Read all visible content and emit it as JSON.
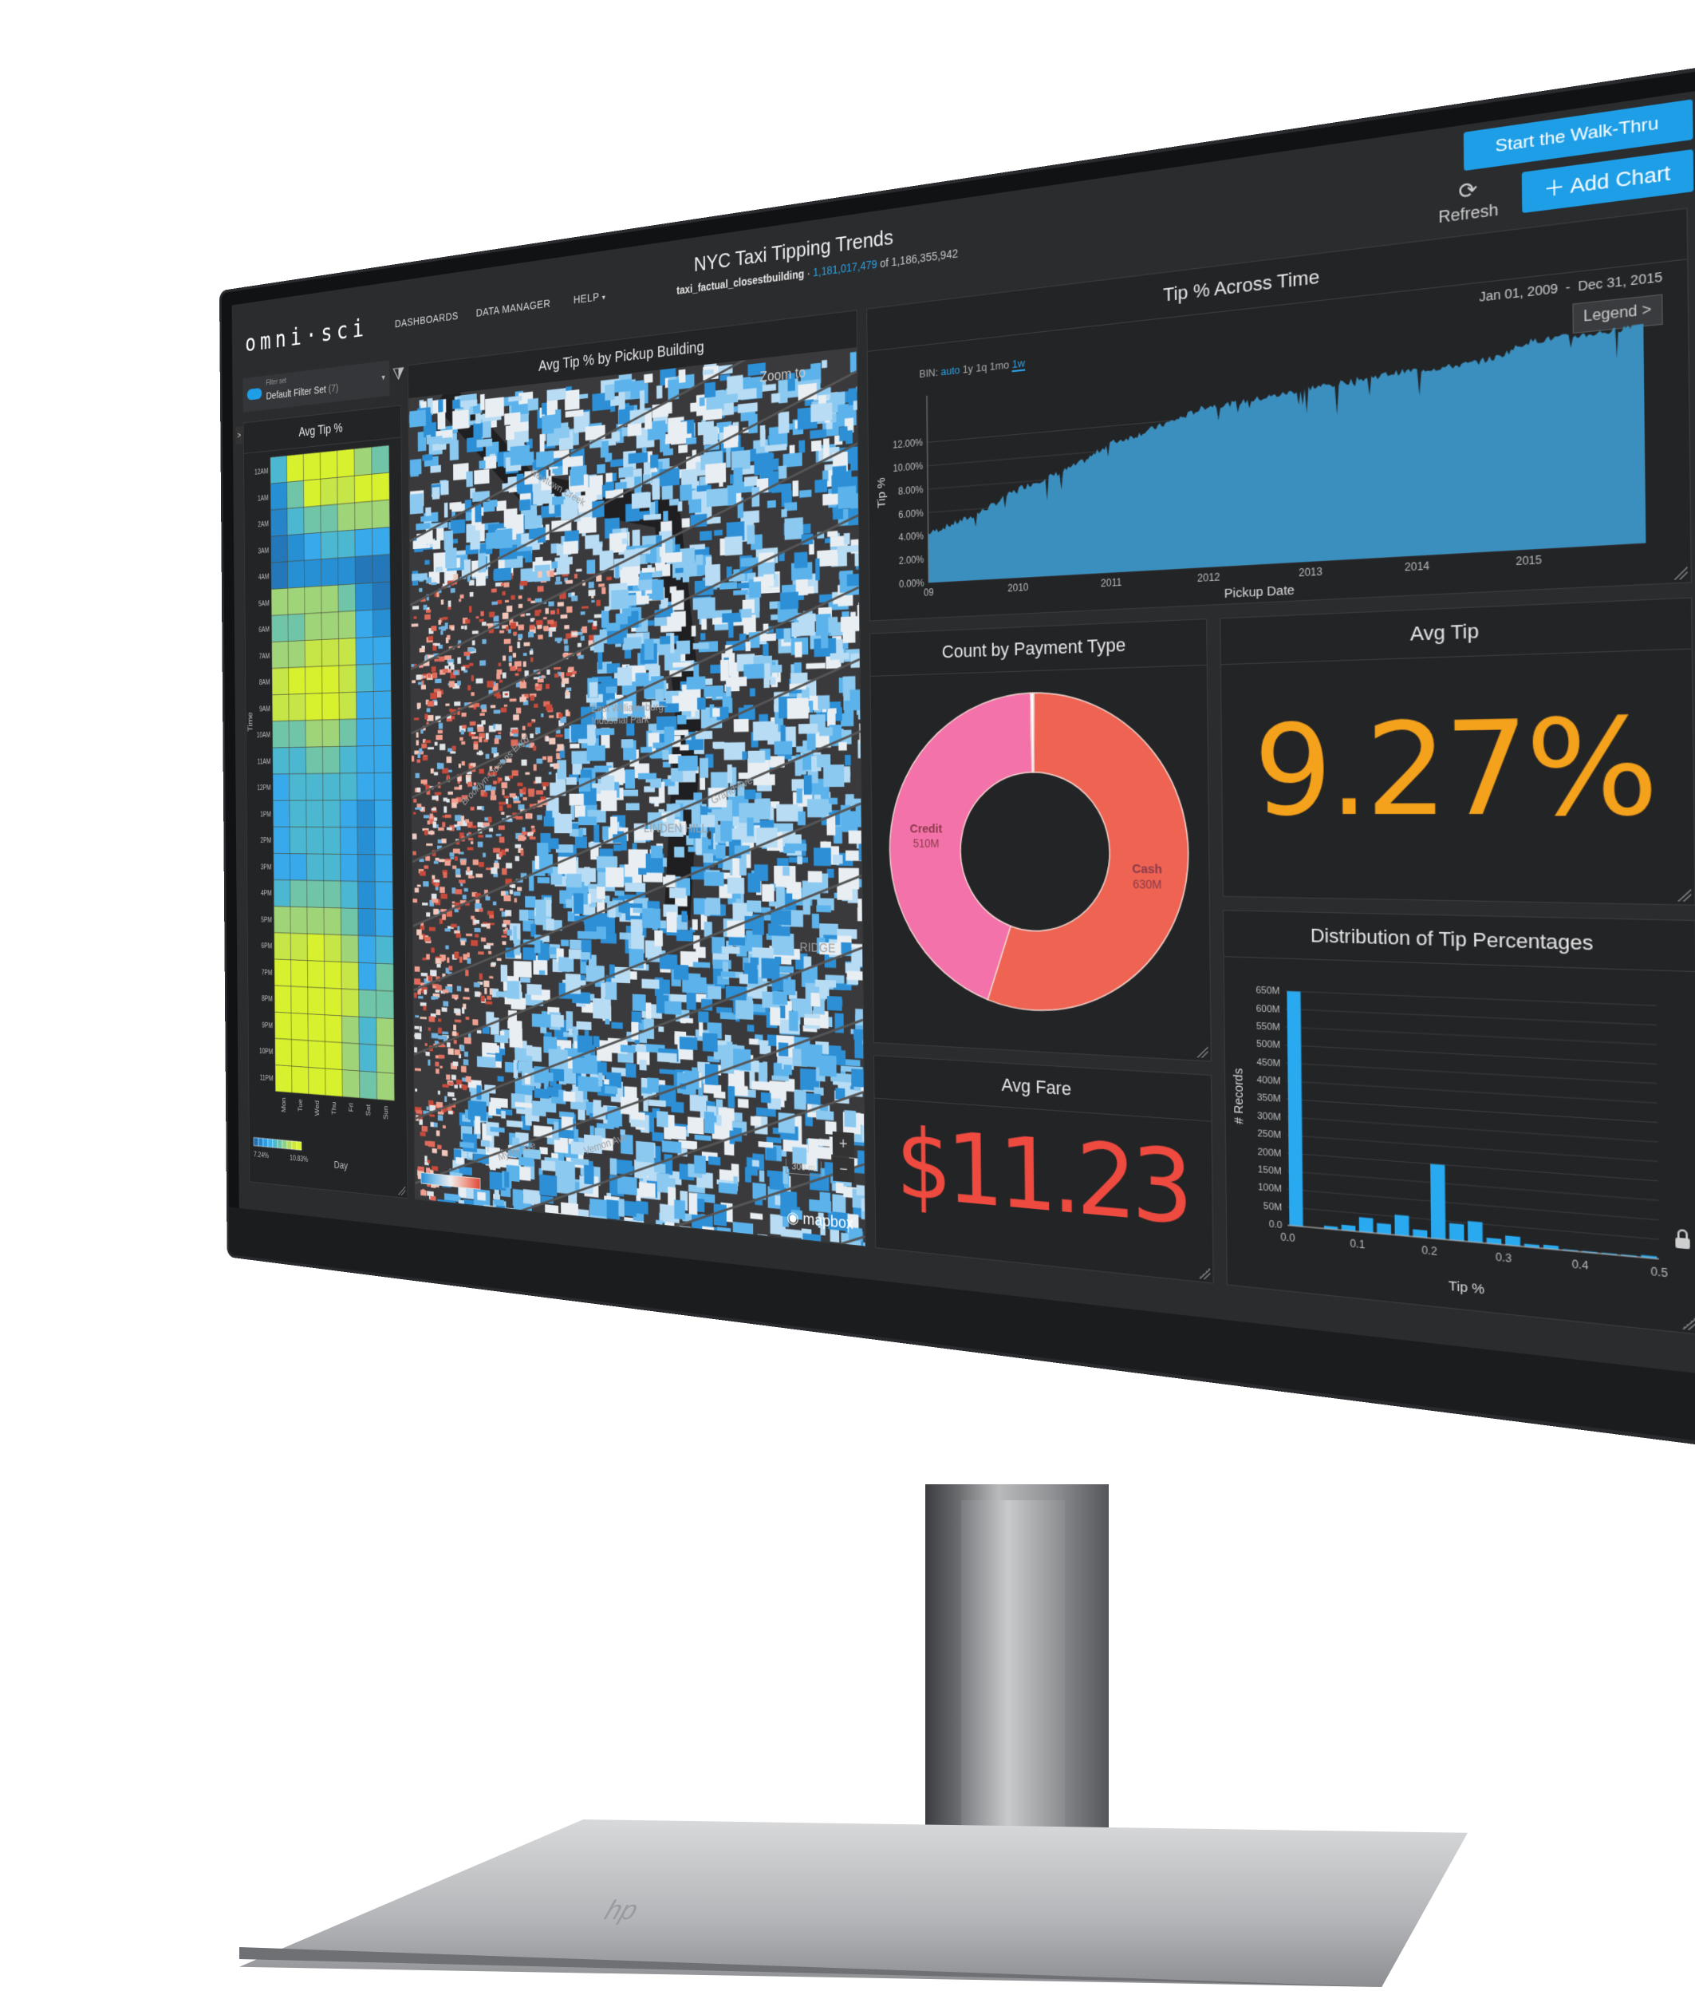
{
  "header": {
    "logo": "omni·sci",
    "nav": [
      "DASHBOARDS",
      "DATA MANAGER",
      "HELP"
    ],
    "title": "NYC Taxi Tipping Trends",
    "table": "taxi_factual_closestbuilding",
    "filtered_count": "1,181,017,479",
    "total_text": "of 1,186,355,942",
    "walkthru_label": "Start the Walk-Thru",
    "add_chart_label": "Add Chart",
    "refresh_label": "Refresh"
  },
  "filter": {
    "caption": "Filter set",
    "value": "Default Filter Set",
    "count": "(7)"
  },
  "colors": {
    "accent": "#1d9ee6",
    "area": "#3a8fbf",
    "bars": "#29aaf0",
    "credit": "#f472aa",
    "cash": "#ee6352",
    "avg_tip": "#f4a11c",
    "avg_fare": "#ef4a3f"
  },
  "heatmap": {
    "title": "Avg Tip %",
    "y_label": "Time",
    "x_label": "Day",
    "legend_min": "7.24%",
    "legend_max": "10.83%",
    "days": [
      "Mon",
      "Tue",
      "Wed",
      "Thu",
      "Fri",
      "Sat",
      "Sun"
    ],
    "hours": [
      "12AM",
      "1AM",
      "2AM",
      "3AM",
      "4AM",
      "5AM",
      "6AM",
      "7AM",
      "8AM",
      "9AM",
      "10AM",
      "11AM",
      "12PM",
      "1PM",
      "2PM",
      "3PM",
      "4PM",
      "5PM",
      "6PM",
      "7PM",
      "8PM",
      "9PM",
      "10PM",
      "11PM"
    ],
    "values_pct": [
      [
        8.8,
        10.7,
        10.7,
        10.7,
        10.7,
        9.8,
        9.3
      ],
      [
        7.8,
        9.3,
        10.7,
        10.3,
        10.3,
        10.7,
        10.7
      ],
      [
        7.6,
        8.8,
        9.3,
        9.3,
        9.8,
        9.8,
        9.8
      ],
      [
        7.4,
        7.8,
        8.3,
        8.8,
        8.8,
        8.3,
        8.3
      ],
      [
        7.4,
        7.8,
        7.8,
        7.8,
        7.8,
        7.4,
        7.4
      ],
      [
        9.8,
        9.8,
        9.8,
        9.8,
        9.3,
        7.8,
        7.4
      ],
      [
        9.3,
        9.3,
        9.8,
        9.8,
        9.8,
        8.3,
        7.8
      ],
      [
        9.8,
        9.8,
        10.3,
        10.3,
        10.3,
        8.3,
        8.3
      ],
      [
        10.3,
        10.7,
        10.7,
        10.7,
        10.3,
        8.8,
        8.3
      ],
      [
        10.3,
        10.3,
        10.7,
        10.7,
        10.3,
        8.3,
        8.3
      ],
      [
        9.3,
        9.3,
        9.8,
        9.8,
        9.3,
        8.3,
        8.3
      ],
      [
        8.8,
        8.8,
        9.3,
        9.3,
        8.8,
        8.3,
        8.3
      ],
      [
        8.3,
        8.8,
        8.8,
        8.8,
        8.8,
        8.3,
        8.3
      ],
      [
        8.3,
        8.8,
        8.8,
        8.8,
        8.3,
        7.8,
        8.3
      ],
      [
        8.3,
        8.8,
        8.8,
        8.8,
        8.3,
        7.8,
        8.3
      ],
      [
        8.3,
        8.3,
        8.8,
        8.8,
        8.3,
        7.8,
        8.3
      ],
      [
        8.8,
        9.3,
        9.3,
        9.3,
        8.8,
        7.8,
        8.3
      ],
      [
        9.8,
        9.8,
        9.8,
        9.8,
        9.3,
        7.8,
        8.3
      ],
      [
        10.3,
        10.3,
        10.7,
        10.3,
        9.8,
        8.3,
        8.8
      ],
      [
        10.7,
        10.7,
        10.7,
        10.7,
        10.3,
        8.3,
        9.3
      ],
      [
        10.7,
        10.7,
        10.7,
        10.7,
        10.3,
        9.3,
        9.3
      ],
      [
        10.7,
        10.7,
        10.7,
        10.7,
        9.8,
        8.8,
        9.8
      ],
      [
        10.7,
        10.7,
        10.7,
        10.7,
        9.8,
        8.8,
        9.8
      ],
      [
        10.7,
        10.7,
        10.7,
        10.7,
        9.8,
        9.3,
        9.8
      ]
    ]
  },
  "map": {
    "title": "Avg Tip % by Pickup Building",
    "zoom_to": "Zoom to",
    "labels": [
      "East Williamsburg Industrial Park",
      "LINDEN HILL",
      "RIDGE",
      "Brooklyn-Queens Expy",
      "Newtown Creek",
      "Grand Ave",
      "Myrtle Ave",
      "Vernon Ave"
    ],
    "scale": "300 m",
    "zoom_in": "+",
    "zoom_out": "−",
    "attribution": "mapbox"
  },
  "chart_data": [
    {
      "type": "area",
      "title": "Tip % Across Time",
      "xlabel": "Pickup Date",
      "ylabel": "Tip %",
      "date_range": "Jan 01, 2009  -  Dec 31, 2015",
      "legend_label": "Legend >",
      "bin_label": "BIN:",
      "bins": [
        "auto",
        "1y",
        "1q",
        "1mo",
        "1w"
      ],
      "bin_selected": "1w",
      "x_ticks": [
        "09",
        "2010",
        "2011",
        "2012",
        "2013",
        "2014",
        "2015"
      ],
      "y_ticks": [
        "0.00%",
        "2.00%",
        "4.00%",
        "6.00%",
        "8.00%",
        "10.00%",
        "12.00%"
      ],
      "ylim": [
        0,
        16
      ],
      "x": [
        "2009-01",
        "2009-04",
        "2009-07",
        "2009-10",
        "2010-01",
        "2010-04",
        "2010-07",
        "2010-10",
        "2011-01",
        "2011-04",
        "2011-07",
        "2011-10",
        "2012-01",
        "2012-04",
        "2012-07",
        "2012-10",
        "2013-01",
        "2013-04",
        "2013-07",
        "2013-10",
        "2014-01",
        "2014-04",
        "2014-07",
        "2014-10",
        "2015-01",
        "2015-04",
        "2015-07",
        "2015-10",
        "2015-12"
      ],
      "values": [
        4.2,
        4.8,
        5.4,
        6.3,
        7.4,
        8.0,
        8.6,
        9.4,
        10.6,
        11.0,
        11.6,
        12.2,
        12.9,
        12.9,
        13.1,
        13.3,
        13.6,
        13.7,
        13.9,
        14.1,
        14.2,
        14.2,
        14.3,
        14.6,
        15.5,
        15.6,
        15.6,
        15.7,
        16.0
      ]
    },
    {
      "type": "pie",
      "title": "Count by Payment Type",
      "slices": [
        {
          "label": "Cash",
          "value": 630,
          "display": "630M"
        },
        {
          "label": "Credit",
          "value": 510,
          "display": "510M"
        },
        {
          "label": "",
          "value": 4,
          "display": ""
        }
      ]
    },
    {
      "type": "bar",
      "title": "Distribution of Tip Percentages",
      "xlabel": "Tip %",
      "ylabel": "# Records",
      "x_ticks": [
        "0.0",
        "0.1",
        "0.2",
        "0.3",
        "0.4",
        "0.5"
      ],
      "y_ticks": [
        "0.0",
        "50M",
        "100M",
        "150M",
        "200M",
        "250M",
        "300M",
        "350M",
        "400M",
        "450M",
        "500M",
        "550M",
        "600M",
        "650M"
      ],
      "xlim": [
        0,
        0.5
      ],
      "ylim": [
        0,
        700
      ],
      "bin_start": [
        0,
        0.025,
        0.05,
        0.075,
        0.1,
        0.125,
        0.15,
        0.175,
        0.2,
        0.225,
        0.25,
        0.275,
        0.3,
        0.325,
        0.35,
        0.375,
        0.4,
        0.425,
        0.45,
        0.475
      ],
      "values": [
        650,
        0,
        8,
        15,
        40,
        28,
        55,
        20,
        200,
        45,
        55,
        15,
        25,
        8,
        10,
        3,
        3,
        3,
        3,
        6
      ]
    }
  ],
  "kpis": {
    "avg_tip": {
      "title": "Avg Tip",
      "value": "9.27%"
    },
    "avg_fare": {
      "title": "Avg Fare",
      "value": "$11.23"
    }
  }
}
